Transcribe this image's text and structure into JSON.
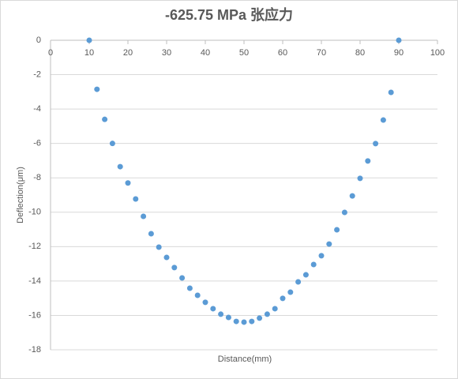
{
  "chart_data": {
    "type": "scatter",
    "title": "-625.75 MPa 张应力",
    "x_label": "Distance(mm)",
    "y_label": "Deflection(μm)",
    "x": [
      10,
      12,
      14,
      16,
      18,
      20,
      22,
      24,
      26,
      28,
      30,
      32,
      34,
      36,
      38,
      40,
      42,
      44,
      46,
      48,
      50,
      52,
      54,
      56,
      58,
      60,
      62,
      64,
      66,
      68,
      70,
      72,
      74,
      76,
      78,
      80,
      82,
      84,
      86,
      88,
      90
    ],
    "series": [
      {
        "color": "#5b9bd5",
        "values": [
          0,
          -2.85,
          -4.6,
          -6.0,
          -7.35,
          -8.3,
          -9.23,
          -10.24,
          -11.25,
          -12.03,
          -12.63,
          -13.22,
          -13.82,
          -14.42,
          -14.83,
          -15.24,
          -15.61,
          -15.93,
          -16.12,
          -16.35,
          -16.39,
          -16.35,
          -16.16,
          -15.93,
          -15.61,
          -15.01,
          -14.65,
          -14.05,
          -13.64,
          -13.04,
          -12.53,
          -11.85,
          -11.02,
          -10.01,
          -9.05,
          -8.03,
          -7.02,
          -6.01,
          -4.64,
          -3.03,
          0
        ]
      }
    ],
    "xlim": [
      0,
      100
    ],
    "xticks": [
      0,
      10,
      20,
      30,
      40,
      50,
      60,
      70,
      80,
      90,
      100
    ],
    "ylim": [
      -18,
      0
    ],
    "yticks": [
      0,
      -2,
      -4,
      -6,
      -8,
      -10,
      -12,
      -14,
      -16,
      -18
    ],
    "grid": true
  }
}
